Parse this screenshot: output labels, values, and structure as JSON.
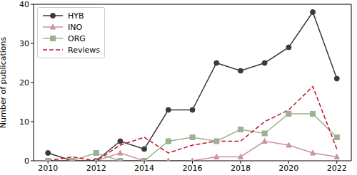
{
  "chart_data": {
    "type": "line",
    "ylabel": "Number of publications",
    "x": [
      2010,
      2011,
      2012,
      2013,
      2014,
      2015,
      2016,
      2017,
      2018,
      2019,
      2020,
      2021,
      2022
    ],
    "series": [
      {
        "name": "HYB",
        "color": "#3a3a3a",
        "marker": "circle",
        "line_style": "solid",
        "values": [
          2,
          0,
          0,
          5,
          3,
          13,
          13,
          25,
          23,
          25,
          29,
          38,
          21
        ]
      },
      {
        "name": "INO",
        "color": "#c9959c",
        "marker": "triangle",
        "line_style": "solid",
        "values": [
          0,
          0,
          0,
          2,
          0,
          0,
          0,
          1,
          1,
          5,
          4,
          2,
          1
        ]
      },
      {
        "name": "ORG",
        "color": "#9db08f",
        "marker": "square",
        "line_style": "solid",
        "values": [
          0,
          0,
          2,
          0,
          0,
          5,
          6,
          5,
          8,
          7,
          12,
          12,
          6
        ]
      },
      {
        "name": "Reviews",
        "color": "#c0142a",
        "marker": "none",
        "line_style": "dashed",
        "values": [
          0,
          1,
          0,
          4,
          6,
          2,
          4,
          5,
          5,
          10,
          13,
          19,
          3
        ]
      }
    ],
    "xlim": [
      2009.4,
      2022.6
    ],
    "xticks": [
      2010,
      2012,
      2014,
      2016,
      2018,
      2020,
      2022
    ],
    "ylim": [
      0,
      40
    ],
    "yticks": [
      0,
      10,
      20,
      30,
      40
    ],
    "legend": "upper left"
  }
}
